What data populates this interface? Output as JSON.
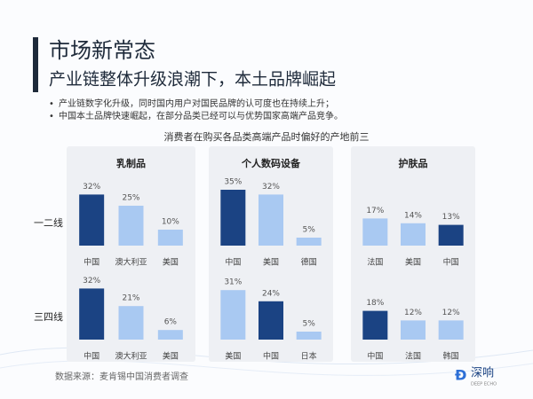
{
  "header": {
    "title": "市场新常态",
    "subtitle": "产业链整体升级浪潮下，本土品牌崛起",
    "bullets": [
      "产业链数字化升级，同时国内用户对国民品牌的认可度也在持续上升；",
      "中国本土品牌快速崛起，在部分品类已经可以与优势国家高端产品竞争。"
    ],
    "chart_title": "消费者在购买各品类高端产品时偏好的产地前三"
  },
  "panels": [
    "乳制品",
    "个人数码设备",
    "护肤品"
  ],
  "rows": [
    "一二线",
    "三四线"
  ],
  "chart_data": [
    {
      "type": "bar",
      "categories": [
        "中国",
        "澳大利亚",
        "美国"
      ],
      "values": [
        32,
        25,
        10
      ],
      "value_labels": [
        "32%",
        "25%",
        "10%"
      ],
      "colors": [
        "#1b4383",
        "#a9c9f2",
        "#a9c9f2"
      ]
    },
    {
      "type": "bar",
      "categories": [
        "中国",
        "美国",
        "德国"
      ],
      "values": [
        35,
        32,
        5
      ],
      "value_labels": [
        "35%",
        "32%",
        "5%"
      ],
      "colors": [
        "#1b4383",
        "#a9c9f2",
        "#a9c9f2"
      ]
    },
    {
      "type": "bar",
      "categories": [
        "法国",
        "美国",
        "中国"
      ],
      "values": [
        17,
        14,
        13
      ],
      "value_labels": [
        "17%",
        "14%",
        "13%"
      ],
      "colors": [
        "#a9c9f2",
        "#a9c9f2",
        "#1b4383"
      ]
    },
    {
      "type": "bar",
      "categories": [
        "中国",
        "澳大利亚",
        "美国"
      ],
      "values": [
        32,
        21,
        6
      ],
      "value_labels": [
        "32%",
        "21%",
        "6%"
      ],
      "colors": [
        "#1b4383",
        "#a9c9f2",
        "#a9c9f2"
      ]
    },
    {
      "type": "bar",
      "categories": [
        "美国",
        "中国",
        "日本"
      ],
      "values": [
        31,
        24,
        5
      ],
      "value_labels": [
        "31%",
        "24%",
        "5%"
      ],
      "colors": [
        "#a9c9f2",
        "#1b4383",
        "#a9c9f2"
      ]
    },
    {
      "type": "bar",
      "categories": [
        "中国",
        "法国",
        "韩国"
      ],
      "values": [
        18,
        12,
        12
      ],
      "value_labels": [
        "18%",
        "12%",
        "12%"
      ],
      "colors": [
        "#1b4383",
        "#a9c9f2",
        "#a9c9f2"
      ]
    }
  ],
  "footer": {
    "source": "数据来源：麦肯锡中国消费者调查",
    "logo": "深响",
    "logo_sub": "DEEP ECHO"
  }
}
